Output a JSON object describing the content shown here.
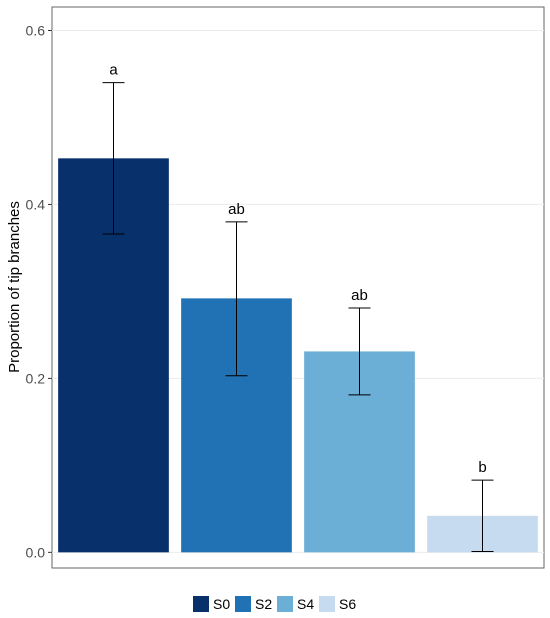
{
  "chart_data": {
    "type": "bar",
    "title": "",
    "xlabel": "",
    "ylabel": "Proportion of tip branches",
    "categories": [
      "S0",
      "S2",
      "S4",
      "S6"
    ],
    "values": [
      0.453,
      0.292,
      0.231,
      0.042
    ],
    "error_low": [
      0.366,
      0.203,
      0.181,
      0.001
    ],
    "error_high": [
      0.54,
      0.38,
      0.281,
      0.083
    ],
    "significance_labels": [
      "a",
      "ab",
      "ab",
      "b"
    ],
    "colors": [
      "#08306b",
      "#2171b5",
      "#6baed6",
      "#c6dbef"
    ],
    "ylim": [
      -0.018,
      0.627
    ],
    "yticks": [
      0.0,
      0.2,
      0.4,
      0.6
    ],
    "ytick_labels": [
      "0.0",
      "0.2",
      "0.4",
      "0.6"
    ],
    "grid": true,
    "legend": {
      "placement": "bottom",
      "entries": [
        "S0",
        "S2",
        "S4",
        "S6"
      ]
    }
  }
}
